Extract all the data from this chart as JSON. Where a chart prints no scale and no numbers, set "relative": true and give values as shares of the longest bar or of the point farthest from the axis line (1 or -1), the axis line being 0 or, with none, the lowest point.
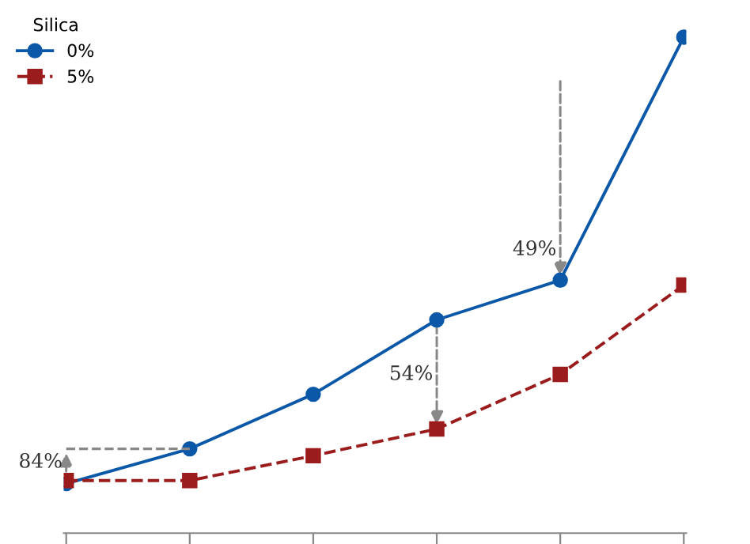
{
  "chart_data": {
    "type": "line",
    "relative": true,
    "categories": [
      null,
      null,
      null,
      null,
      null,
      null
    ],
    "legend_title": "Silica",
    "legend": "top left",
    "grid": false,
    "series": [
      {
        "name": "0%",
        "color": "#0b57a8",
        "values": [
          0.1,
          0.17,
          0.28,
          0.43,
          0.51,
          1
        ],
        "marker": "circle",
        "line_style": "solid"
      },
      {
        "name": "5%",
        "color": "#9b1c1c",
        "values": [
          0.106,
          0.106,
          0.156,
          0.21,
          0.32,
          0.5
        ],
        "marker": "square",
        "line_style": "dashed"
      }
    ],
    "annotations": [
      "84%",
      "54%",
      "49%"
    ]
  }
}
